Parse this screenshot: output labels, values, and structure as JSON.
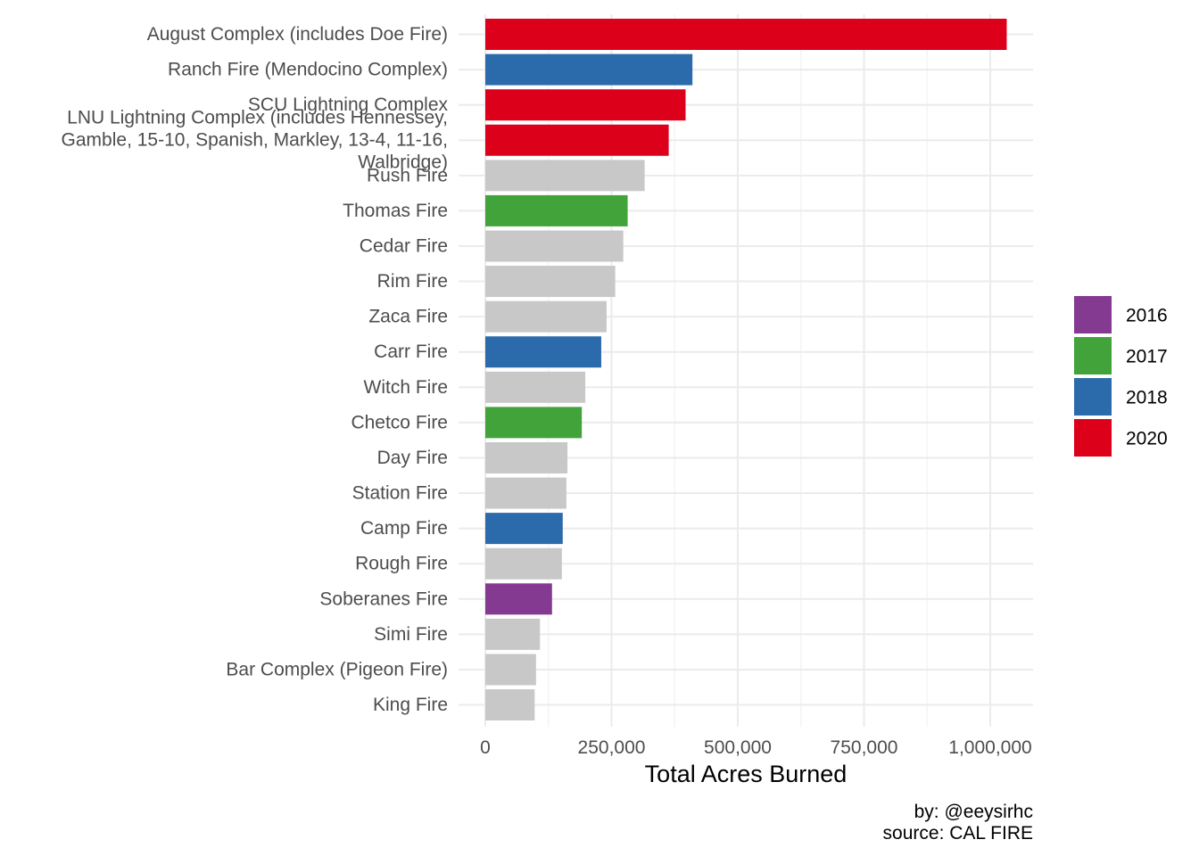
{
  "chart_data": {
    "type": "bar",
    "orientation": "horizontal",
    "xlabel": "Total Acres Burned",
    "ylabel": "",
    "title": "",
    "xlim": [
      0,
      1080000
    ],
    "x_ticks": [
      0,
      250000,
      500000,
      750000,
      1000000
    ],
    "x_tick_labels": [
      "0",
      "250,000",
      "500,000",
      "750,000",
      "1,000,000"
    ],
    "grid": true,
    "legend_position": "right",
    "caption_lines": [
      "by: @eeysirhc",
      "source: CAL FIRE"
    ],
    "legend": [
      {
        "label": "2016",
        "color": "#843a91"
      },
      {
        "label": "2017",
        "color": "#41a33a"
      },
      {
        "label": "2018",
        "color": "#2c6bab"
      },
      {
        "label": "2020",
        "color": "#dc001b"
      }
    ],
    "other_color": "#c8c8c8",
    "bars": [
      {
        "label": [
          "August Complex (includes Doe Fire)"
        ],
        "value": 1032648,
        "group": "2020"
      },
      {
        "label": [
          "Ranch Fire (Mendocino Complex)"
        ],
        "value": 410203,
        "group": "2018"
      },
      {
        "label": [
          "SCU Lightning Complex"
        ],
        "value": 396624,
        "group": "2020"
      },
      {
        "label": [
          "LNU Lightning Complex (includes Hennessey,",
          "Gamble, 15-10, Spanish, Markley, 13-4, 11-16,",
          "Walbridge)"
        ],
        "value": 363220,
        "group": "2020"
      },
      {
        "label": [
          "Rush Fire"
        ],
        "value": 315577,
        "group": null
      },
      {
        "label": [
          "Thomas Fire"
        ],
        "value": 281893,
        "group": "2017"
      },
      {
        "label": [
          "Cedar Fire"
        ],
        "value": 273246,
        "group": null
      },
      {
        "label": [
          "Rim Fire"
        ],
        "value": 257314,
        "group": null
      },
      {
        "label": [
          "Zaca Fire"
        ],
        "value": 240207,
        "group": null
      },
      {
        "label": [
          "Carr Fire"
        ],
        "value": 229651,
        "group": "2018"
      },
      {
        "label": [
          "Witch Fire"
        ],
        "value": 197990,
        "group": null
      },
      {
        "label": [
          "Chetco Fire"
        ],
        "value": 191125,
        "group": "2017"
      },
      {
        "label": [
          "Day Fire"
        ],
        "value": 162702,
        "group": null
      },
      {
        "label": [
          "Station Fire"
        ],
        "value": 160557,
        "group": null
      },
      {
        "label": [
          "Camp Fire"
        ],
        "value": 153336,
        "group": "2018"
      },
      {
        "label": [
          "Rough Fire"
        ],
        "value": 151623,
        "group": null
      },
      {
        "label": [
          "Soberanes Fire"
        ],
        "value": 132127,
        "group": "2016"
      },
      {
        "label": [
          "Simi Fire"
        ],
        "value": 108204,
        "group": null
      },
      {
        "label": [
          "Bar Complex (Pigeon Fire)"
        ],
        "value": 100414,
        "group": null
      },
      {
        "label": [
          "King Fire"
        ],
        "value": 97717,
        "group": null
      }
    ]
  }
}
